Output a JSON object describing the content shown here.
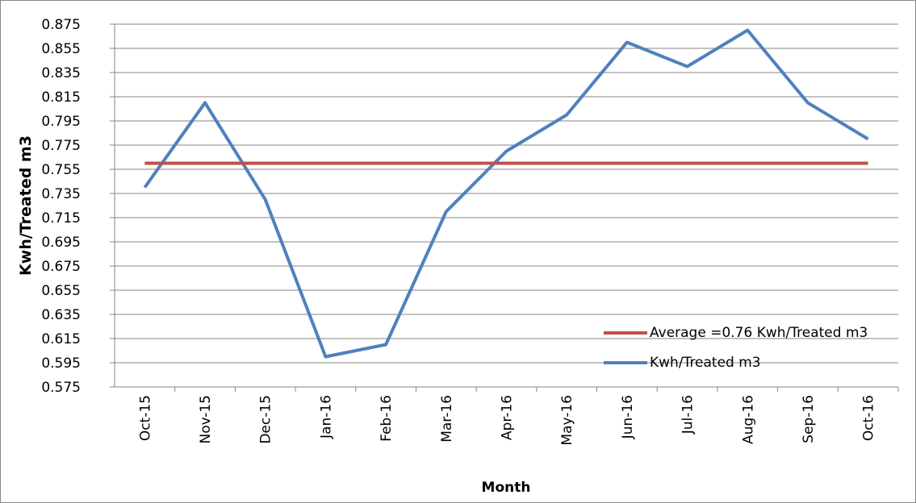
{
  "chart_data": {
    "type": "line",
    "y_label": "Kwh/Treated m3",
    "x_label": "Month",
    "categories": [
      "Oct-15",
      "Nov-15",
      "Dec-15",
      "Jan-16",
      "Feb-16",
      "Mar-16",
      "Apr-16",
      "May-16",
      "Jun-16",
      "Jul-16",
      "Aug-16",
      "Sep-16",
      "Oct-16"
    ],
    "series": [
      {
        "name": "Kwh/Treated m3",
        "color": "#4f81bd",
        "values": [
          0.74,
          0.81,
          0.73,
          0.6,
          0.61,
          0.72,
          0.77,
          0.8,
          0.86,
          0.84,
          0.87,
          0.81,
          0.78
        ]
      },
      {
        "name": "Average =0.76 Kwh/Treated m3",
        "color": "#c0504d",
        "values": [
          0.76,
          0.76,
          0.76,
          0.76,
          0.76,
          0.76,
          0.76,
          0.76,
          0.76,
          0.76,
          0.76,
          0.76,
          0.76
        ]
      }
    ],
    "ylim": [
      0.575,
      0.875
    ],
    "yticks": [
      0.575,
      0.595,
      0.615,
      0.635,
      0.655,
      0.675,
      0.695,
      0.715,
      0.735,
      0.755,
      0.775,
      0.795,
      0.815,
      0.835,
      0.855,
      0.875
    ],
    "grid": true
  }
}
